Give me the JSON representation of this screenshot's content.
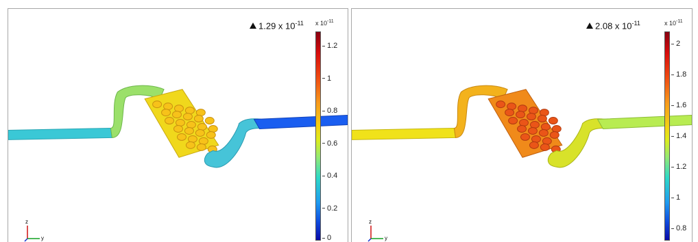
{
  "panels": [
    {
      "max_value": "1.29 x 10",
      "max_exp": "-11",
      "colorbar_multiplier": "x 10",
      "colorbar_multiplier_exp": "-11",
      "colorbar_ticks": [
        "1.2",
        "1",
        "0.8",
        "0.6",
        "0.4",
        "0.2",
        "0"
      ],
      "tick_values": [
        1.2,
        1.0,
        0.8,
        0.6,
        0.4,
        0.2,
        0.0
      ],
      "range": [
        0,
        1.29
      ],
      "axis_z": "z",
      "axis_y": "y"
    },
    {
      "max_value": "2.08 x 10",
      "max_exp": "-11",
      "colorbar_multiplier": "x 10",
      "colorbar_multiplier_exp": "-11",
      "colorbar_ticks": [
        "2",
        "1.8",
        "1.6",
        "1.4",
        "1.2",
        "1",
        "0.8"
      ],
      "tick_values": [
        2.0,
        1.8,
        1.6,
        1.4,
        1.2,
        1.0,
        0.8
      ],
      "range": [
        0.72,
        2.08
      ],
      "axis_z": "z",
      "axis_y": "y"
    }
  ],
  "colors": {
    "left_inlet": "#3ac8d6",
    "left_bend1": "#9be06a",
    "left_chamber": "#f0d81c",
    "left_pillars": "#f7c21a",
    "left_bend2": "#46c4d8",
    "left_outlet": "#1a5ef0",
    "right_inlet": "#f0e21a",
    "right_bend1": "#f3b21c",
    "right_chamber": "#f08a1a",
    "right_pillars": "#ea5518",
    "right_bend2": "#d8e22a",
    "right_outlet": "#b8ec52"
  }
}
